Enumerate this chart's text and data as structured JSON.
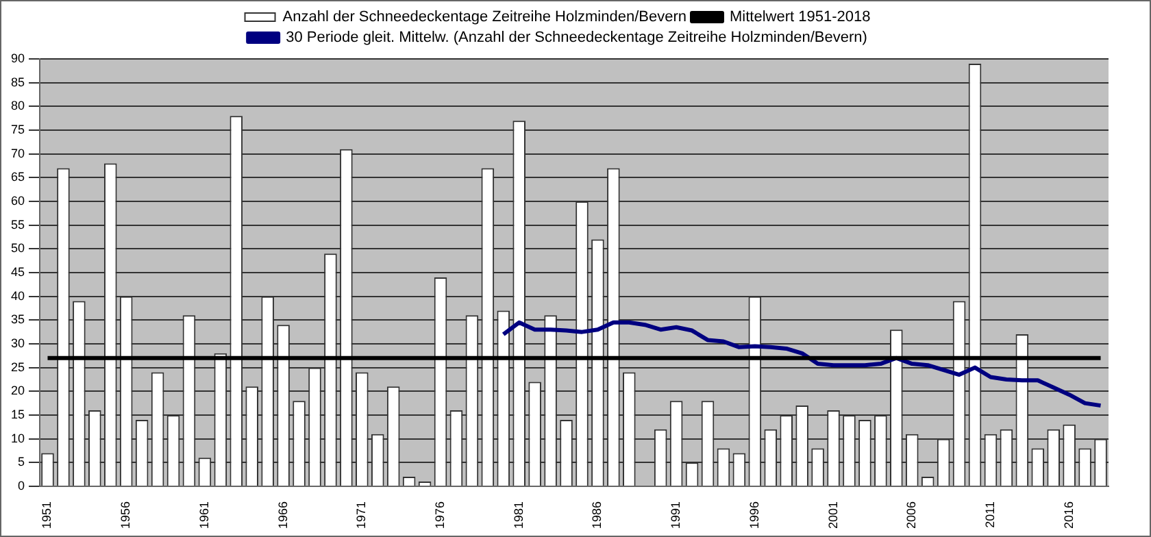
{
  "chart_data": {
    "type": "bar",
    "categories": [
      "1951",
      null,
      null,
      null,
      null,
      "1956",
      null,
      null,
      null,
      null,
      "1961",
      null,
      null,
      null,
      null,
      "1966",
      null,
      null,
      null,
      null,
      "1971",
      null,
      null,
      null,
      null,
      "1976",
      null,
      null,
      null,
      null,
      "1981",
      null,
      null,
      null,
      null,
      "1986",
      null,
      null,
      null,
      null,
      "1991",
      null,
      null,
      null,
      null,
      "1996",
      null,
      null,
      null,
      null,
      "2001",
      null,
      null,
      null,
      null,
      "2006",
      null,
      null,
      null,
      null,
      "2011",
      null,
      null,
      null,
      null,
      "2016",
      null,
      null
    ],
    "series": [
      {
        "name": "Anzahl der Schneedeckentage Zeitreihe Holzminden/Bevern",
        "color": "#ffffff",
        "values": [
          7,
          67,
          39,
          16,
          68,
          40,
          14,
          24,
          15,
          36,
          6,
          28,
          78,
          21,
          40,
          34,
          18,
          25,
          49,
          71,
          24,
          11,
          21,
          2,
          1,
          44,
          16,
          36,
          67,
          37,
          77,
          22,
          36,
          14,
          60,
          52,
          67,
          24,
          0,
          12,
          18,
          5,
          18,
          8,
          7,
          40,
          12,
          15,
          17,
          8,
          16,
          15,
          14,
          15,
          33,
          11,
          2,
          10,
          39,
          89,
          11,
          12,
          32,
          8,
          12,
          13,
          8,
          10
        ]
      },
      {
        "name": "Mittelwert 1951-2018",
        "type": "line",
        "color": "#000000",
        "values": [
          27,
          27,
          27,
          27,
          27,
          27,
          27,
          27,
          27,
          27,
          27,
          27,
          27,
          27,
          27,
          27,
          27,
          27,
          27,
          27,
          27,
          27,
          27,
          27,
          27,
          27,
          27,
          27,
          27,
          27,
          27,
          27,
          27,
          27,
          27,
          27,
          27,
          27,
          27,
          27,
          27,
          27,
          27,
          27,
          27,
          27,
          27,
          27,
          27,
          27,
          27,
          27,
          27,
          27,
          27,
          27,
          27,
          27,
          27,
          27,
          27,
          27,
          27,
          27,
          27,
          27,
          27,
          27
        ]
      },
      {
        "name": "30 Periode gleit. Mittelw. (Anzahl der Schneedeckentage Zeitreihe Holzminden/Bevern)",
        "type": "line",
        "color": "#000080",
        "values": [
          null,
          null,
          null,
          null,
          null,
          null,
          null,
          null,
          null,
          null,
          null,
          null,
          null,
          null,
          null,
          null,
          null,
          null,
          null,
          null,
          null,
          null,
          null,
          null,
          null,
          null,
          null,
          null,
          null,
          32,
          34.5,
          33,
          33,
          32.8,
          32.5,
          33,
          34.5,
          34.5,
          34,
          33,
          33.5,
          32.8,
          30.8,
          30.5,
          29.3,
          29.5,
          29.3,
          29,
          28,
          25.8,
          25.5,
          25.5,
          25.5,
          25.8,
          27,
          25.8,
          25.5,
          24.5,
          23.5,
          25,
          23,
          22.5,
          22.3,
          22.3,
          20.8,
          19.3,
          17.5,
          17
        ]
      }
    ],
    "ylim": [
      0,
      90
    ],
    "yticks": [
      0,
      5,
      10,
      15,
      20,
      25,
      30,
      35,
      40,
      45,
      50,
      55,
      60,
      65,
      70,
      75,
      80,
      85,
      90
    ],
    "grid": "y",
    "legend": "top",
    "marker": "none"
  }
}
